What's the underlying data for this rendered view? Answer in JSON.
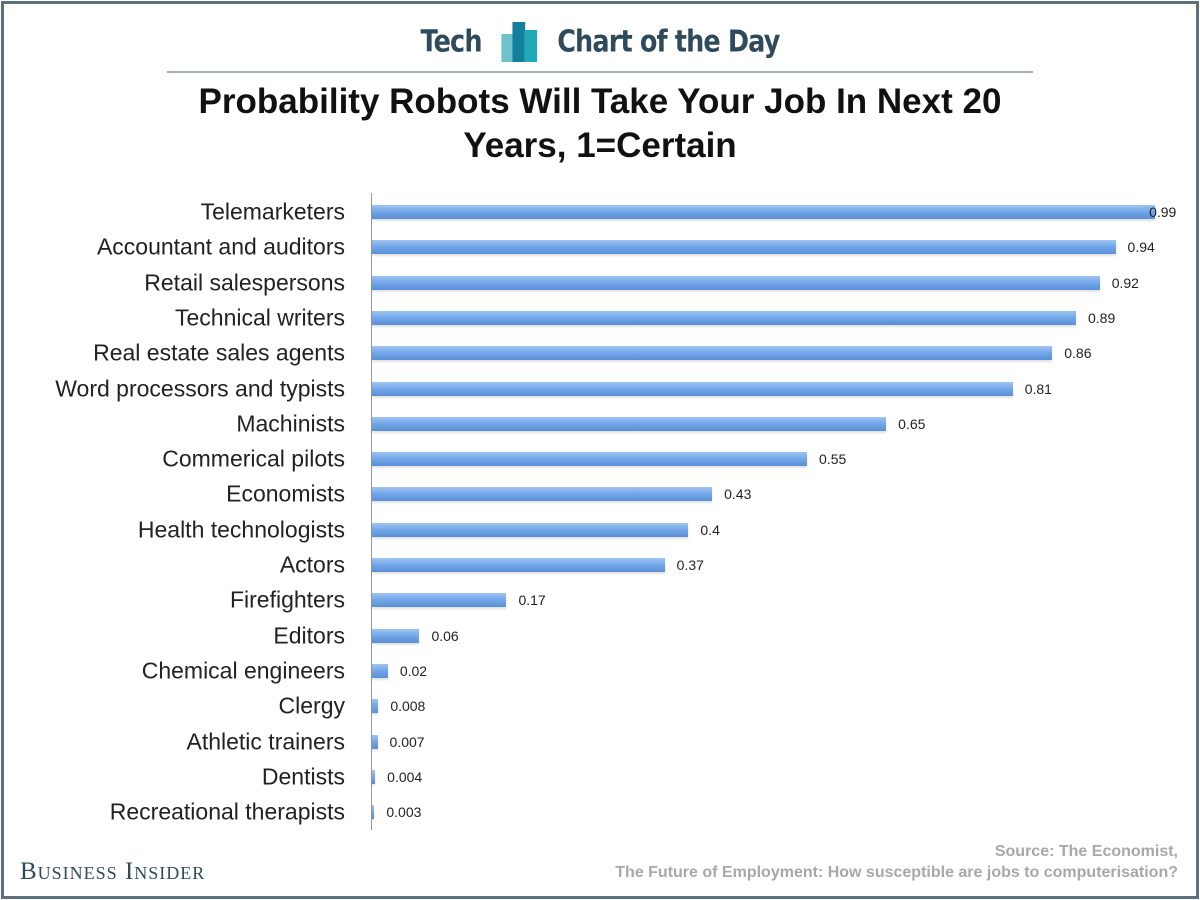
{
  "header": {
    "left": "Tech",
    "right": "Chart of the Day",
    "logo_colors": [
      "#6cc3cc",
      "#137f9c",
      "#21a9b8"
    ]
  },
  "brand": "Business Insider",
  "source": {
    "line1": "Source: The Economist,",
    "line2": "The Future of Employment: How susceptible are jobs to computerisation?"
  },
  "chart_data": {
    "type": "bar",
    "orientation": "horizontal",
    "title": "Probability Robots Will Take Your Job In Next 20 Years, 1=Certain",
    "categories": [
      "Telemarketers",
      "Accountant and auditors",
      "Retail salespersons",
      "Technical writers",
      "Real estate sales agents",
      "Word processors and typists",
      "Machinists",
      "Commerical pilots",
      "Economists",
      "Health technologists",
      "Actors",
      "Firefighters",
      "Editors",
      "Chemical engineers",
      "Clergy",
      "Athletic trainers",
      "Dentists",
      "Recreational therapists"
    ],
    "values": [
      0.99,
      0.94,
      0.92,
      0.89,
      0.86,
      0.81,
      0.65,
      0.55,
      0.43,
      0.4,
      0.37,
      0.17,
      0.06,
      0.02,
      0.008,
      0.007,
      0.004,
      0.003
    ],
    "value_labels": [
      "0.99",
      "0.94",
      "0.92",
      "0.89",
      "0.86",
      "0.81",
      "0.65",
      "0.55",
      "0.43",
      "0.4",
      "0.37",
      "0.17",
      "0.06",
      "0.02",
      "0.008",
      "0.007",
      "0.004",
      "0.003"
    ],
    "xlim": [
      0,
      1
    ],
    "grid": false,
    "bar_color": "#6ea3e6"
  }
}
